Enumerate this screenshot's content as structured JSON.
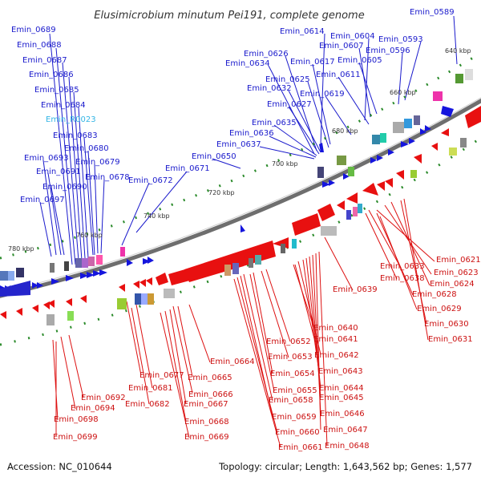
{
  "title": "Elusimicrobium minutum Pei191, complete genome",
  "footer": {
    "accession": "Accession: NC_010644",
    "summary": "Topology: circular; Length: 1,643,562 bp; Genes: 1,577"
  },
  "colors": {
    "forward": "#1a1acc",
    "reverse": "#dd1111",
    "rna": "#33b5e5",
    "backbone": "#777777"
  },
  "kbp_ticks": [
    "640 kbp",
    "660 kbp",
    "680 kbp",
    "700 kbp",
    "720 kbp",
    "740 kbp",
    "760 kbp",
    "780 kbp"
  ],
  "blue_labels": [
    "Emin_0689",
    "Emin_0688",
    "Emin_0687",
    "Emin_0686",
    "Emin_0685",
    "Emin_0684",
    "Emin_R0023",
    "Emin_0683",
    "Emin_0680",
    "Emin_0693",
    "Emin_0679",
    "Emin_0691",
    "Emin_0678",
    "Emin_0690",
    "Emin_0697",
    "Emin_0672",
    "Emin_0671",
    "Emin_0650",
    "Emin_0614",
    "Emin_0626",
    "Emin_0604",
    "Emin_0634",
    "Emin_0607",
    "Emin_0593",
    "Emin_0596",
    "Emin_0589",
    "Emin_0617",
    "Emin_0605",
    "Emin_0625",
    "Emin_0632",
    "Emin_0611",
    "Emin_0619",
    "Emin_0627",
    "Emin_0635",
    "Emin_0636",
    "Emin_0637"
  ],
  "red_labels": [
    "Emin_0621",
    "Emin_0633",
    "Emin_0623",
    "Emin_0638",
    "Emin_0624",
    "Emin_0639",
    "Emin_0628",
    "Emin_0629",
    "Emin_0630",
    "Emin_0631",
    "Emin_0640",
    "Emin_0652",
    "Emin_0641",
    "Emin_0653",
    "Emin_0642",
    "Emin_0664",
    "Emin_0654",
    "Emin_0643",
    "Emin_0677",
    "Emin_0665",
    "Emin_0681",
    "Emin_0655",
    "Emin_0644",
    "Emin_0666",
    "Emin_0658",
    "Emin_0645",
    "Emin_0692",
    "Emin_0667",
    "Emin_0682",
    "Emin_0694",
    "Emin_0659",
    "Emin_0646",
    "Emin_0698",
    "Emin_0668",
    "Emin_0660",
    "Emin_0647",
    "Emin_0699",
    "Emin_0669",
    "Emin_0661",
    "Emin_0648"
  ]
}
